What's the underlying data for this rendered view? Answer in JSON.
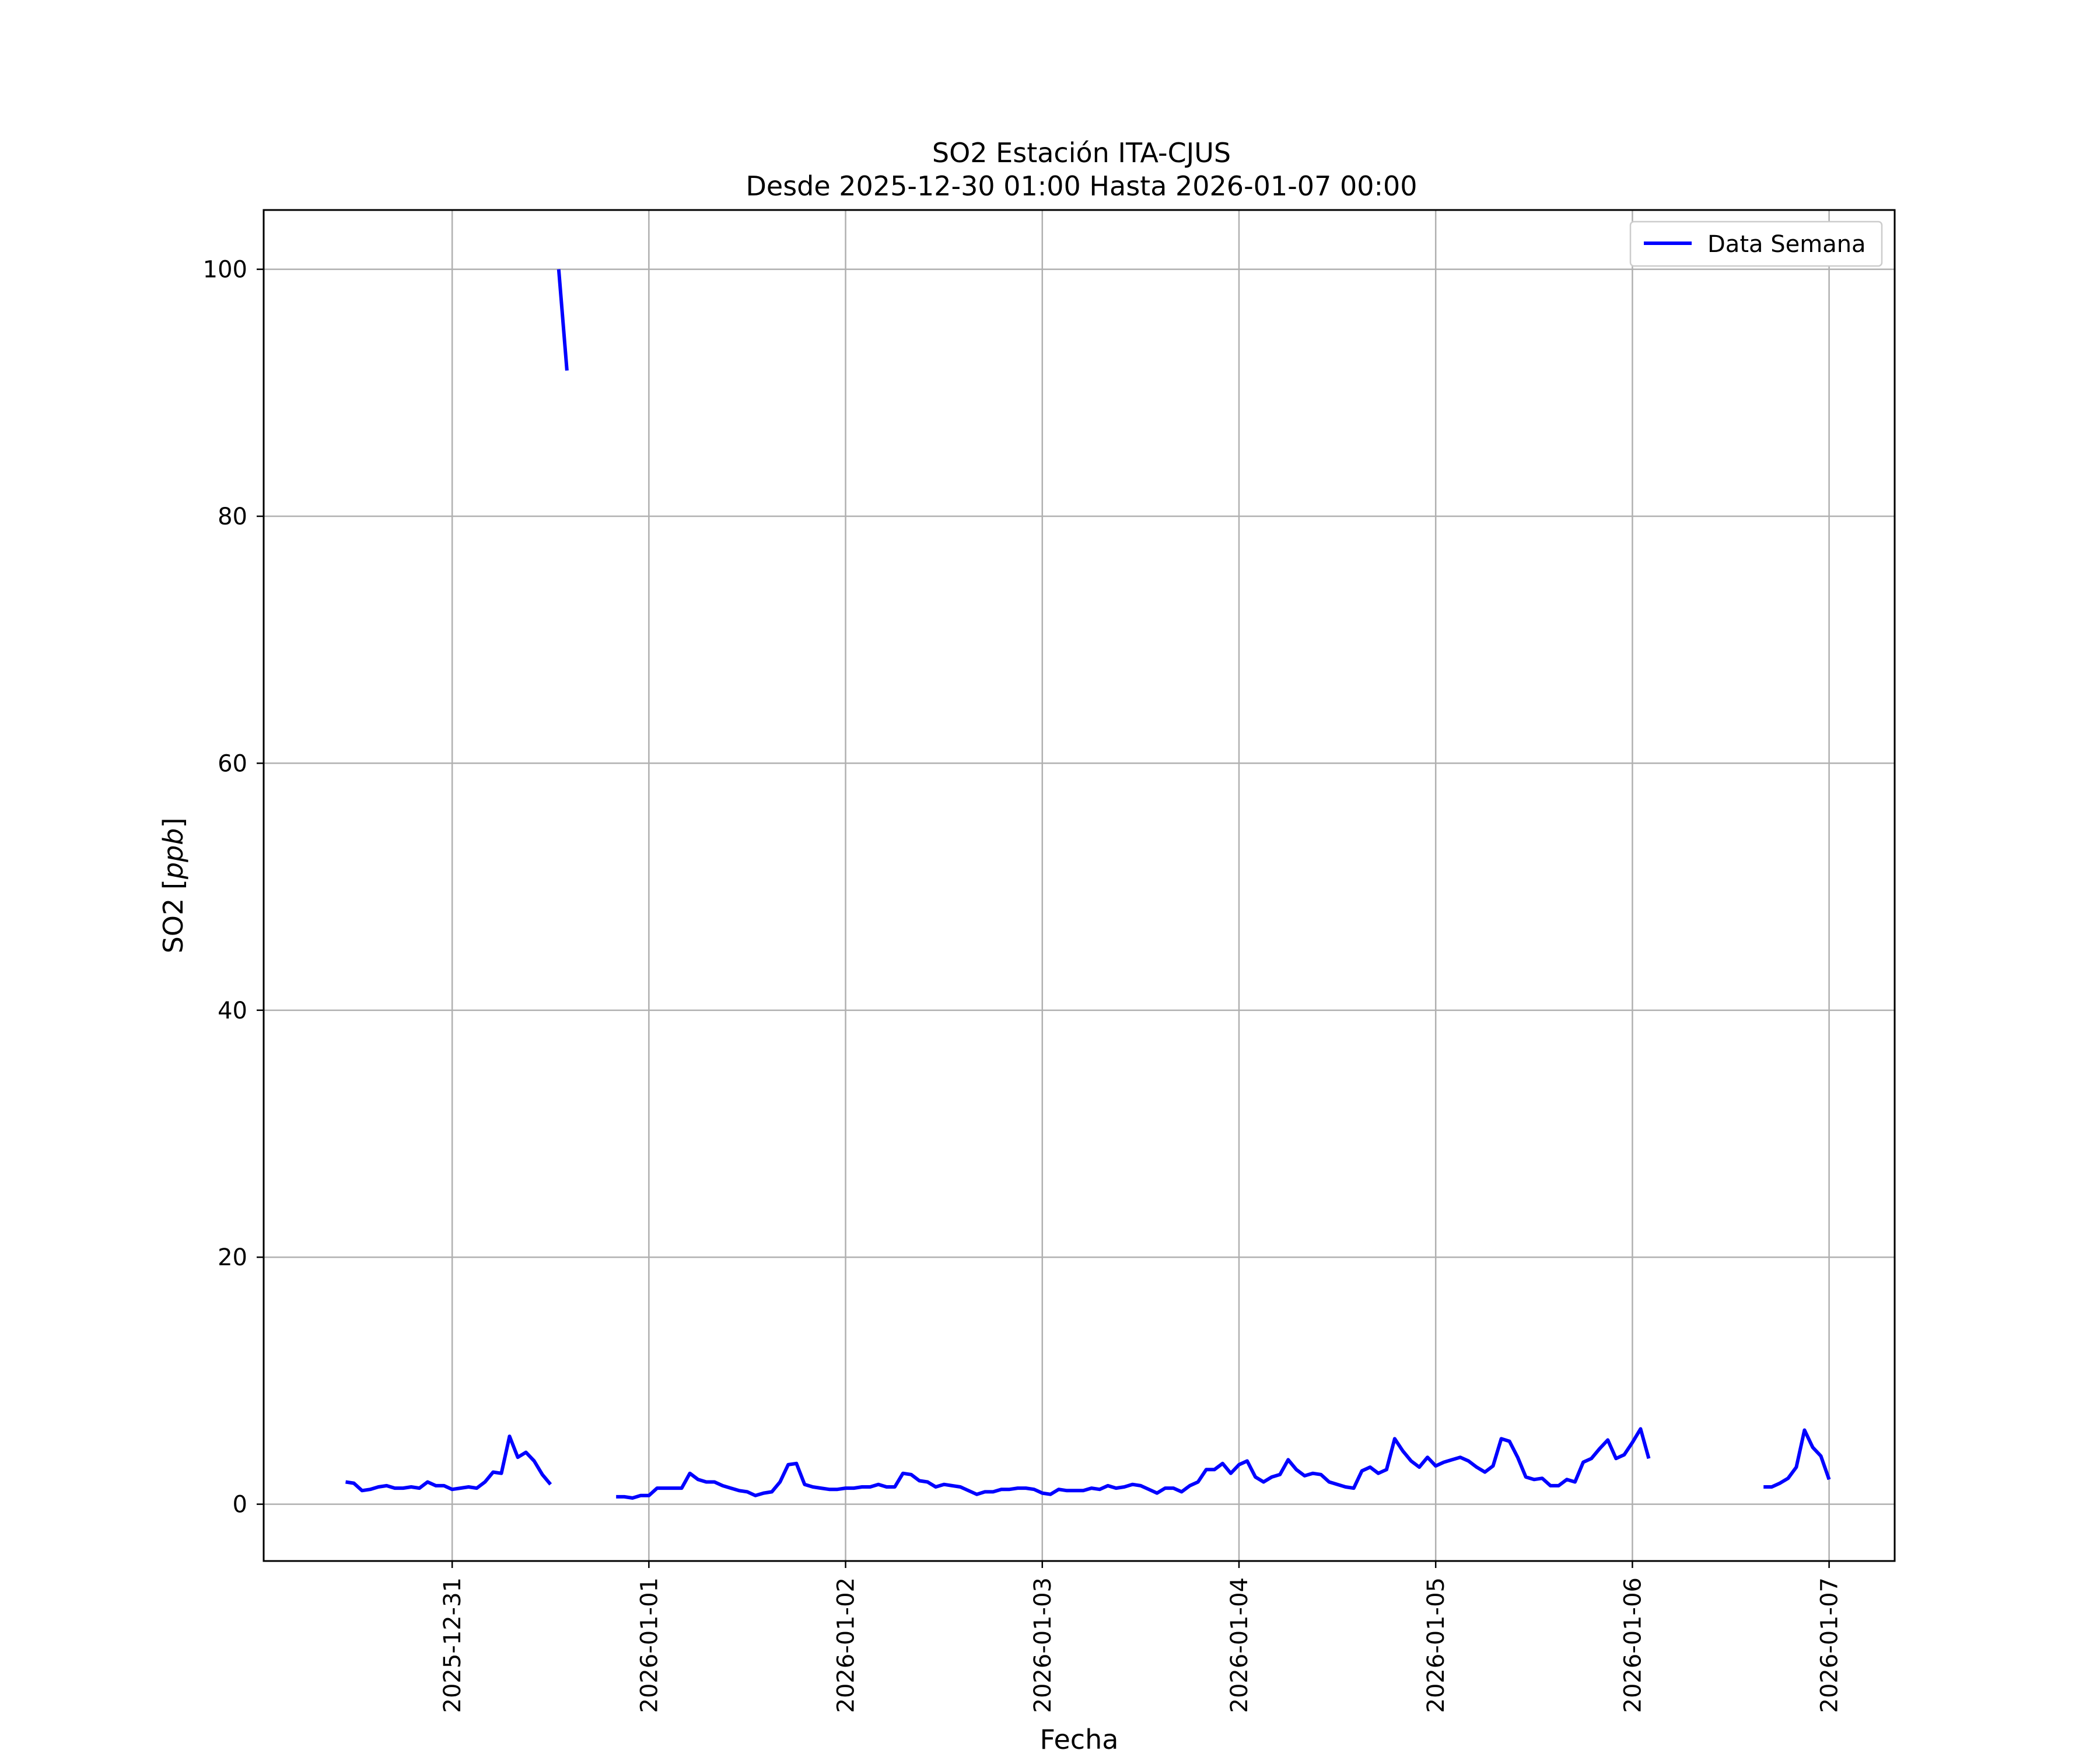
{
  "chart_data": {
    "type": "line",
    "title": "SO2 Estación ITA-CJUS",
    "subtitle": "Desde 2025-12-30 01:00 Hasta 2026-01-07 00:00",
    "xlabel": "Fecha",
    "ylabel": "SO2 [ppb]",
    "ylabel_main": "SO2",
    "ylabel_unit": "ppb",
    "xlim": [
      "2025-12-30 01:00",
      "2026-01-07 08:00"
    ],
    "ylim": [
      -4.6,
      104.8
    ],
    "x_ticks": [
      "2025-12-31",
      "2026-01-01",
      "2026-01-02",
      "2026-01-03",
      "2026-01-04",
      "2026-01-05",
      "2026-01-06",
      "2026-01-07"
    ],
    "y_ticks": [
      0,
      20,
      40,
      60,
      80,
      100
    ],
    "grid": true,
    "legend_position": "upper right",
    "series": [
      {
        "name": "Data Semana",
        "color": "#0000ff",
        "points": [
          [
            "2025-12-30 11:00",
            1.8
          ],
          [
            "2025-12-30 12:00",
            1.7
          ],
          [
            "2025-12-30 13:00",
            1.1
          ],
          [
            "2025-12-30 14:00",
            1.2
          ],
          [
            "2025-12-30 15:00",
            1.4
          ],
          [
            "2025-12-30 16:00",
            1.5
          ],
          [
            "2025-12-30 17:00",
            1.3
          ],
          [
            "2025-12-30 18:00",
            1.3
          ],
          [
            "2025-12-30 19:00",
            1.4
          ],
          [
            "2025-12-30 20:00",
            1.3
          ],
          [
            "2025-12-30 21:00",
            1.8
          ],
          [
            "2025-12-30 22:00",
            1.5
          ],
          [
            "2025-12-30 23:00",
            1.5
          ],
          [
            "2025-12-31 00:00",
            1.2
          ],
          [
            "2025-12-31 01:00",
            1.3
          ],
          [
            "2025-12-31 02:00",
            1.4
          ],
          [
            "2025-12-31 03:00",
            1.3
          ],
          [
            "2025-12-31 04:00",
            1.8
          ],
          [
            "2025-12-31 05:00",
            2.6
          ],
          [
            "2025-12-31 06:00",
            2.5
          ],
          [
            "2025-12-31 07:00",
            5.5
          ],
          [
            "2025-12-31 08:00",
            3.8
          ],
          [
            "2025-12-31 09:00",
            4.2
          ],
          [
            "2025-12-31 10:00",
            3.5
          ],
          [
            "2025-12-31 11:00",
            2.4
          ],
          [
            "2025-12-31 12:00",
            1.6
          ],
          null,
          [
            "2025-12-31 13:00",
            100.0
          ],
          [
            "2025-12-31 14:00",
            91.8
          ],
          null,
          [
            "2025-12-31 20:00",
            0.6
          ],
          [
            "2025-12-31 21:00",
            0.6
          ],
          [
            "2025-12-31 22:00",
            0.5
          ],
          [
            "2025-12-31 23:00",
            0.7
          ],
          [
            "2026-01-01 00:00",
            0.7
          ],
          [
            "2026-01-01 01:00",
            1.3
          ],
          [
            "2026-01-01 02:00",
            1.3
          ],
          [
            "2026-01-01 03:00",
            1.3
          ],
          [
            "2026-01-01 04:00",
            1.3
          ],
          [
            "2026-01-01 05:00",
            2.5
          ],
          [
            "2026-01-01 06:00",
            2.0
          ],
          [
            "2026-01-01 07:00",
            1.8
          ],
          [
            "2026-01-01 08:00",
            1.8
          ],
          [
            "2026-01-01 09:00",
            1.5
          ],
          [
            "2026-01-01 10:00",
            1.3
          ],
          [
            "2026-01-01 11:00",
            1.1
          ],
          [
            "2026-01-01 12:00",
            1.0
          ],
          [
            "2026-01-01 13:00",
            0.7
          ],
          [
            "2026-01-01 14:00",
            0.9
          ],
          [
            "2026-01-01 15:00",
            1.0
          ],
          [
            "2026-01-01 16:00",
            1.8
          ],
          [
            "2026-01-01 17:00",
            3.2
          ],
          [
            "2026-01-01 18:00",
            3.3
          ],
          [
            "2026-01-01 19:00",
            1.6
          ],
          [
            "2026-01-01 20:00",
            1.4
          ],
          [
            "2026-01-01 21:00",
            1.3
          ],
          [
            "2026-01-01 22:00",
            1.2
          ],
          [
            "2026-01-01 23:00",
            1.2
          ],
          [
            "2026-01-02 00:00",
            1.3
          ],
          [
            "2026-01-02 01:00",
            1.3
          ],
          [
            "2026-01-02 02:00",
            1.4
          ],
          [
            "2026-01-02 03:00",
            1.4
          ],
          [
            "2026-01-02 04:00",
            1.6
          ],
          [
            "2026-01-02 05:00",
            1.4
          ],
          [
            "2026-01-02 06:00",
            1.4
          ],
          [
            "2026-01-02 07:00",
            2.5
          ],
          [
            "2026-01-02 08:00",
            2.4
          ],
          [
            "2026-01-02 09:00",
            1.9
          ],
          [
            "2026-01-02 10:00",
            1.8
          ],
          [
            "2026-01-02 11:00",
            1.4
          ],
          [
            "2026-01-02 12:00",
            1.6
          ],
          [
            "2026-01-02 13:00",
            1.5
          ],
          [
            "2026-01-02 14:00",
            1.4
          ],
          [
            "2026-01-02 15:00",
            1.1
          ],
          [
            "2026-01-02 16:00",
            0.8
          ],
          [
            "2026-01-02 17:00",
            1.0
          ],
          [
            "2026-01-02 18:00",
            1.0
          ],
          [
            "2026-01-02 19:00",
            1.2
          ],
          [
            "2026-01-02 20:00",
            1.2
          ],
          [
            "2026-01-02 21:00",
            1.3
          ],
          [
            "2026-01-02 22:00",
            1.3
          ],
          [
            "2026-01-02 23:00",
            1.2
          ],
          [
            "2026-01-03 00:00",
            0.9
          ],
          [
            "2026-01-03 01:00",
            0.8
          ],
          [
            "2026-01-03 02:00",
            1.2
          ],
          [
            "2026-01-03 03:00",
            1.1
          ],
          [
            "2026-01-03 04:00",
            1.1
          ],
          [
            "2026-01-03 05:00",
            1.1
          ],
          [
            "2026-01-03 06:00",
            1.3
          ],
          [
            "2026-01-03 07:00",
            1.2
          ],
          [
            "2026-01-03 08:00",
            1.5
          ],
          [
            "2026-01-03 09:00",
            1.3
          ],
          [
            "2026-01-03 10:00",
            1.4
          ],
          [
            "2026-01-03 11:00",
            1.6
          ],
          [
            "2026-01-03 12:00",
            1.5
          ],
          [
            "2026-01-03 13:00",
            1.2
          ],
          [
            "2026-01-03 14:00",
            0.9
          ],
          [
            "2026-01-03 15:00",
            1.3
          ],
          [
            "2026-01-03 16:00",
            1.3
          ],
          [
            "2026-01-03 17:00",
            1.0
          ],
          [
            "2026-01-03 18:00",
            1.5
          ],
          [
            "2026-01-03 19:00",
            1.8
          ],
          [
            "2026-01-03 20:00",
            2.8
          ],
          [
            "2026-01-03 21:00",
            2.8
          ],
          [
            "2026-01-03 22:00",
            3.3
          ],
          [
            "2026-01-03 23:00",
            2.5
          ],
          [
            "2026-01-04 00:00",
            3.2
          ],
          [
            "2026-01-04 01:00",
            3.5
          ],
          [
            "2026-01-04 02:00",
            2.2
          ],
          [
            "2026-01-04 03:00",
            1.8
          ],
          [
            "2026-01-04 04:00",
            2.2
          ],
          [
            "2026-01-04 05:00",
            2.4
          ],
          [
            "2026-01-04 06:00",
            3.6
          ],
          [
            "2026-01-04 07:00",
            2.8
          ],
          [
            "2026-01-04 08:00",
            2.3
          ],
          [
            "2026-01-04 09:00",
            2.5
          ],
          [
            "2026-01-04 10:00",
            2.4
          ],
          [
            "2026-01-04 11:00",
            1.8
          ],
          [
            "2026-01-04 12:00",
            1.6
          ],
          [
            "2026-01-04 13:00",
            1.4
          ],
          [
            "2026-01-04 14:00",
            1.3
          ],
          [
            "2026-01-04 15:00",
            2.7
          ],
          [
            "2026-01-04 16:00",
            3.0
          ],
          [
            "2026-01-04 17:00",
            2.5
          ],
          [
            "2026-01-04 18:00",
            2.8
          ],
          [
            "2026-01-04 19:00",
            5.3
          ],
          [
            "2026-01-04 20:00",
            4.3
          ],
          [
            "2026-01-04 21:00",
            3.5
          ],
          [
            "2026-01-04 22:00",
            3.0
          ],
          [
            "2026-01-04 23:00",
            3.8
          ],
          [
            "2026-01-05 00:00",
            3.1
          ],
          [
            "2026-01-05 01:00",
            3.4
          ],
          [
            "2026-01-05 02:00",
            3.6
          ],
          [
            "2026-01-05 03:00",
            3.8
          ],
          [
            "2026-01-05 04:00",
            3.5
          ],
          [
            "2026-01-05 05:00",
            3.0
          ],
          [
            "2026-01-05 06:00",
            2.6
          ],
          [
            "2026-01-05 07:00",
            3.1
          ],
          [
            "2026-01-05 08:00",
            5.3
          ],
          [
            "2026-01-05 09:00",
            5.1
          ],
          [
            "2026-01-05 10:00",
            3.8
          ],
          [
            "2026-01-05 11:00",
            2.2
          ],
          [
            "2026-01-05 12:00",
            2.0
          ],
          [
            "2026-01-05 13:00",
            2.1
          ],
          [
            "2026-01-05 14:00",
            1.5
          ],
          [
            "2026-01-05 15:00",
            1.5
          ],
          [
            "2026-01-05 16:00",
            2.0
          ],
          [
            "2026-01-05 17:00",
            1.8
          ],
          [
            "2026-01-05 18:00",
            3.4
          ],
          [
            "2026-01-05 19:00",
            3.7
          ],
          [
            "2026-01-05 20:00",
            4.5
          ],
          [
            "2026-01-05 21:00",
            5.2
          ],
          [
            "2026-01-05 22:00",
            3.7
          ],
          [
            "2026-01-05 23:00",
            4.0
          ],
          [
            "2026-01-06 00:00",
            5.0
          ],
          [
            "2026-01-06 01:00",
            6.1
          ],
          [
            "2026-01-06 02:00",
            3.7
          ],
          null,
          [
            "2026-01-06 16:00",
            1.4
          ],
          [
            "2026-01-06 17:00",
            1.4
          ],
          [
            "2026-01-06 18:00",
            1.7
          ],
          [
            "2026-01-06 19:00",
            2.1
          ],
          [
            "2026-01-06 20:00",
            3.0
          ],
          [
            "2026-01-06 21:00",
            6.0
          ],
          [
            "2026-01-06 22:00",
            4.6
          ],
          [
            "2026-01-06 23:00",
            3.9
          ],
          [
            "2026-01-07 00:00",
            2.0
          ]
        ]
      }
    ]
  }
}
